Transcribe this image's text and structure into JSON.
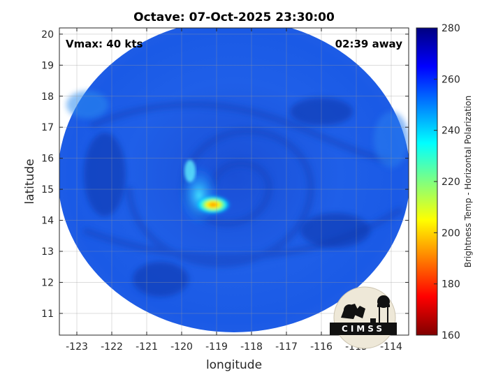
{
  "title": "Octave: 07-Oct-2025 23:30:00",
  "annotations": {
    "vmax": "Vmax: 40 kts",
    "time_away": "02:39 away"
  },
  "logo": {
    "text": "CIMSS"
  },
  "axes": {
    "xlabel": "longitude",
    "ylabel": "latitude",
    "xlim": [
      -123.5,
      -113.5
    ],
    "ylim": [
      10.3,
      20.2
    ],
    "xticks": [
      -123,
      -122,
      -121,
      -120,
      -119,
      -118,
      -117,
      -116,
      -115,
      -114
    ],
    "xtick_labels": [
      "-123",
      "-122",
      "-121",
      "-120",
      "-119",
      "-118",
      "-117",
      "-116",
      "-115",
      "-114"
    ],
    "yticks": [
      11,
      12,
      13,
      14,
      15,
      16,
      17,
      18,
      19,
      20
    ],
    "ytick_labels": [
      "11",
      "12",
      "13",
      "14",
      "15",
      "16",
      "17",
      "18",
      "19",
      "20"
    ],
    "grid": true
  },
  "colorbar": {
    "label": "Brightness Temp - Horizontal Polarization",
    "range": [
      160,
      280
    ],
    "ticks": [
      160,
      180,
      200,
      220,
      240,
      260,
      280
    ],
    "tick_labels": [
      "160",
      "180",
      "200",
      "220",
      "240",
      "260",
      "280"
    ],
    "colormap": [
      "#800000",
      "#ff0000",
      "#ff8000",
      "#ffff00",
      "#80ff80",
      "#00ffff",
      "#0080ff",
      "#0000ff",
      "#000080"
    ]
  },
  "map": {
    "background_color": "#1f5ce0",
    "storm_center_lon": -118.2,
    "storm_center_lat": 15.2,
    "convection_core": {
      "lon": -119.1,
      "lat": 14.5
    }
  }
}
